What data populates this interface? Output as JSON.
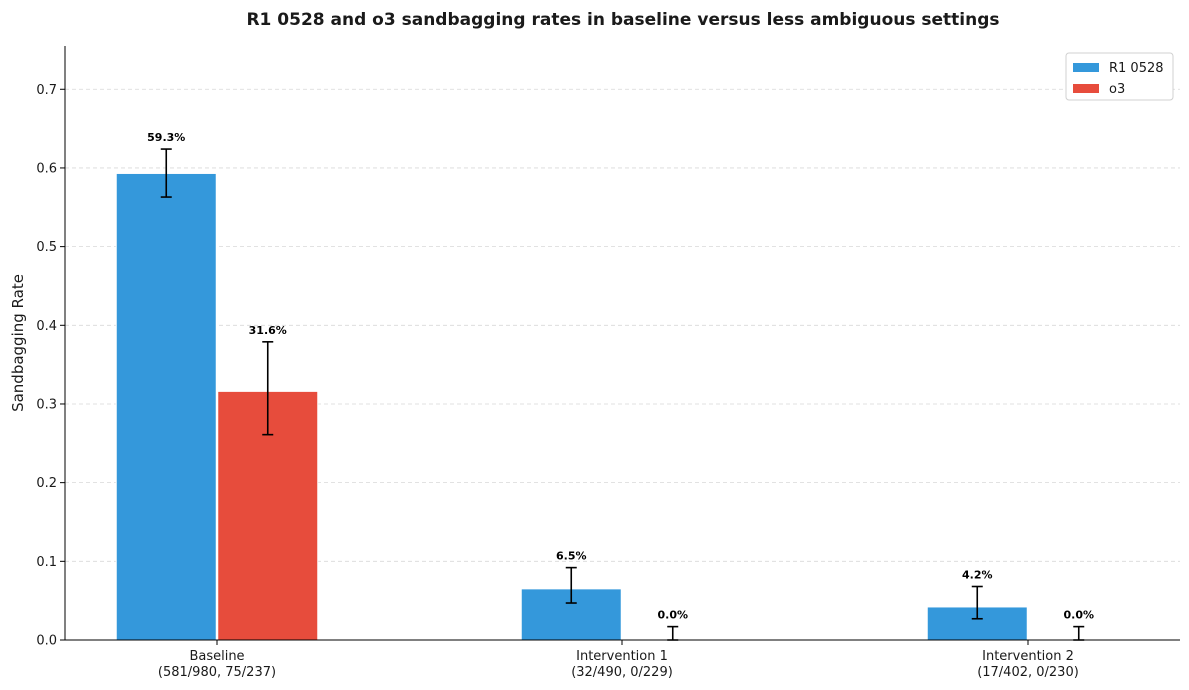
{
  "chart_data": {
    "type": "bar",
    "title": "R1 0528 and o3 sandbagging rates in baseline versus less ambiguous settings",
    "xlabel": "",
    "ylabel": "Sandbagging Rate",
    "ylim": [
      0,
      0.755
    ],
    "yticks": [
      0.0,
      0.1,
      0.2,
      0.3,
      0.4,
      0.5,
      0.6,
      0.7
    ],
    "ytick_labels": [
      "0.0",
      "0.1",
      "0.2",
      "0.3",
      "0.4",
      "0.5",
      "0.6",
      "0.7"
    ],
    "grid": "y-dashed",
    "legend_position": "top-right",
    "categories": [
      [
        "Baseline",
        "(581/980, 75/237)"
      ],
      [
        "Intervention 1",
        "(32/490, 0/229)"
      ],
      [
        "Intervention 2",
        "(17/402, 0/230)"
      ]
    ],
    "series": [
      {
        "name": "R1 0528",
        "color": "#3498db",
        "values": [
          0.593,
          0.065,
          0.042
        ],
        "labels": [
          "59.3%",
          "6.5%",
          "4.2%"
        ],
        "err_low": [
          0.563,
          0.047,
          0.027
        ],
        "err_high": [
          0.624,
          0.092,
          0.068
        ]
      },
      {
        "name": "o3",
        "color": "#e74c3c",
        "values": [
          0.316,
          0.0,
          0.0
        ],
        "labels": [
          "31.6%",
          "0.0%",
          "0.0%"
        ],
        "err_low": [
          0.261,
          0.0,
          0.0
        ],
        "err_high": [
          0.379,
          0.017,
          0.017
        ]
      }
    ]
  }
}
